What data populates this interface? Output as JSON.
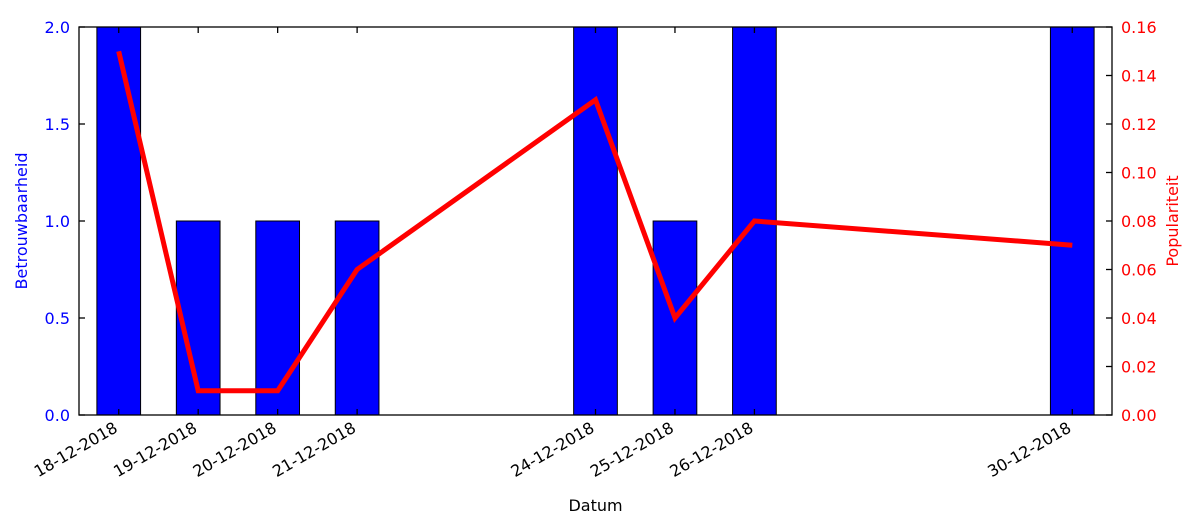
{
  "chart_data": {
    "type": "bar",
    "xlabel": "Datum",
    "ylabel_left": "Betrouwbaarheid",
    "ylabel_right": "Populariteit",
    "x_ticks": [
      "18-12-2018",
      "19-12-2018",
      "20-12-2018",
      "21-12-2018",
      "24-12-2018",
      "25-12-2018",
      "26-12-2018",
      "30-12-2018"
    ],
    "ylim_left": [
      0,
      2.0
    ],
    "ylim_right": [
      0,
      0.16
    ],
    "yticks_left": [
      "0.0",
      "0.5",
      "1.0",
      "1.5",
      "2.0"
    ],
    "yticks_right": [
      "0.00",
      "0.02",
      "0.04",
      "0.06",
      "0.08",
      "0.10",
      "0.12",
      "0.14",
      "0.16"
    ],
    "grid": false,
    "legend": "none",
    "colors": {
      "bars": "#0000ff",
      "line": "#ff0000",
      "left_axis": "#0000ff",
      "right_axis": "#ff0000"
    },
    "series": [
      {
        "kind": "bar",
        "axis": "left",
        "values": [
          {
            "x": "18-12-2018",
            "y": 2.0
          },
          {
            "x": "19-12-2018",
            "y": 1.0
          },
          {
            "x": "20-12-2018",
            "y": 1.0
          },
          {
            "x": "21-12-2018",
            "y": 1.0
          },
          {
            "x": "24-12-2018",
            "y": 2.0
          },
          {
            "x": "25-12-2018",
            "y": 1.0
          },
          {
            "x": "26-12-2018",
            "y": 2.0
          },
          {
            "x": "30-12-2018",
            "y": 2.0
          }
        ]
      },
      {
        "kind": "line",
        "axis": "right",
        "values": [
          {
            "x": "18-12-2018",
            "y": 0.15
          },
          {
            "x": "19-12-2018",
            "y": 0.01
          },
          {
            "x": "20-12-2018",
            "y": 0.01
          },
          {
            "x": "21-12-2018",
            "y": 0.06
          },
          {
            "x": "24-12-2018",
            "y": 0.13
          },
          {
            "x": "25-12-2018",
            "y": 0.04
          },
          {
            "x": "26-12-2018",
            "y": 0.08
          },
          {
            "x": "30-12-2018",
            "y": 0.07
          }
        ]
      }
    ]
  }
}
